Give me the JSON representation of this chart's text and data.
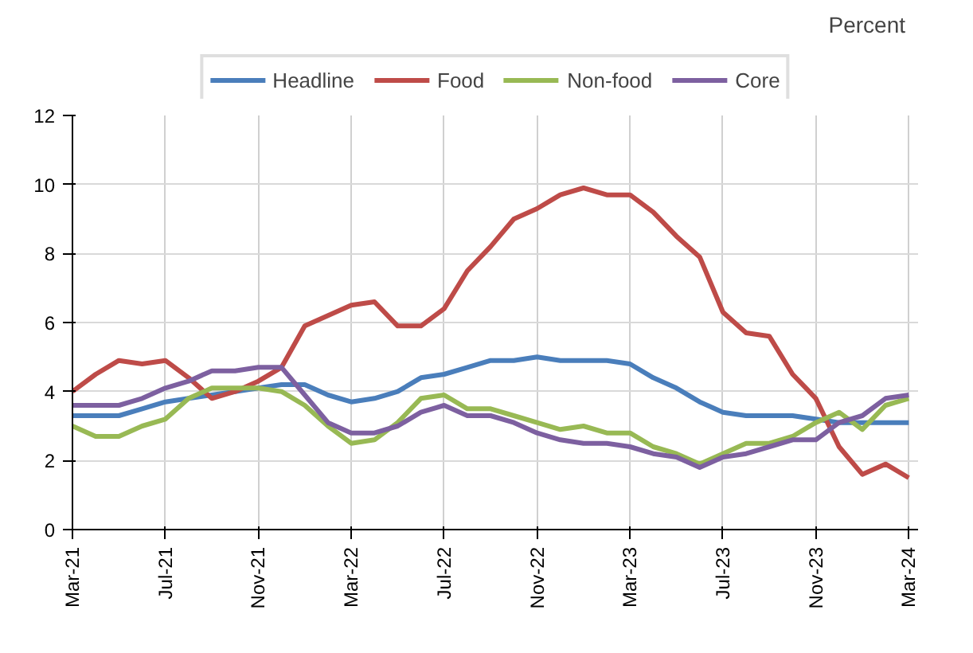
{
  "chart_data": {
    "type": "line",
    "categories": [
      "Mar-21",
      null,
      null,
      null,
      "Jul-21",
      null,
      null,
      null,
      "Nov-21",
      null,
      null,
      null,
      "Mar-22",
      null,
      null,
      null,
      "Jul-22",
      null,
      null,
      null,
      "Nov-22",
      null,
      null,
      null,
      "Mar-23",
      null,
      null,
      null,
      "Jul-23",
      null,
      null,
      null,
      "Nov-23",
      null,
      null,
      null,
      "Mar-24"
    ],
    "series": [
      {
        "name": "Headline",
        "color": "#4a7ebb",
        "values": [
          3.3,
          3.3,
          3.3,
          3.5,
          3.7,
          3.8,
          3.9,
          4.0,
          4.1,
          4.2,
          4.2,
          3.9,
          3.7,
          3.8,
          4.0,
          4.4,
          4.5,
          4.7,
          4.9,
          4.9,
          5.0,
          4.9,
          4.9,
          4.9,
          4.8,
          4.4,
          4.1,
          3.7,
          3.4,
          3.3,
          3.3,
          3.3,
          3.2,
          3.1,
          3.1,
          3.1,
          3.1
        ]
      },
      {
        "name": "Food",
        "color": "#be4b48",
        "values": [
          4.0,
          4.5,
          4.9,
          4.8,
          4.9,
          4.4,
          3.8,
          4.0,
          4.3,
          4.7,
          5.9,
          6.2,
          6.5,
          6.6,
          5.9,
          5.9,
          6.4,
          7.5,
          8.2,
          9.0,
          9.3,
          9.7,
          9.9,
          9.7,
          9.7,
          9.2,
          8.5,
          7.9,
          6.3,
          5.7,
          5.6,
          4.5,
          3.8,
          2.4,
          1.6,
          1.9,
          1.5
        ]
      },
      {
        "name": "Non-food",
        "color": "#98b954",
        "values": [
          3.0,
          2.7,
          2.7,
          3.0,
          3.2,
          3.8,
          4.1,
          4.1,
          4.1,
          4.0,
          3.6,
          3.0,
          2.5,
          2.6,
          3.1,
          3.8,
          3.9,
          3.5,
          3.5,
          3.3,
          3.1,
          2.9,
          3.0,
          2.8,
          2.8,
          2.4,
          2.2,
          1.9,
          2.2,
          2.5,
          2.5,
          2.7,
          3.1,
          3.4,
          2.9,
          3.6,
          3.8
        ]
      },
      {
        "name": "Core",
        "color": "#7d60a0",
        "values": [
          3.6,
          3.6,
          3.6,
          3.8,
          4.1,
          4.3,
          4.6,
          4.6,
          4.7,
          4.7,
          3.9,
          3.1,
          2.8,
          2.8,
          3.0,
          3.4,
          3.6,
          3.3,
          3.3,
          3.1,
          2.8,
          2.6,
          2.5,
          2.5,
          2.4,
          2.2,
          2.1,
          1.8,
          2.1,
          2.2,
          2.4,
          2.6,
          2.6,
          3.1,
          3.3,
          3.8,
          3.9
        ]
      }
    ],
    "ylim": [
      0,
      12
    ],
    "yticks": [
      0,
      2,
      4,
      6,
      8,
      10,
      12
    ],
    "grid": true,
    "legend": "top",
    "line_style": "solid",
    "marker": "none",
    "annotations": [
      "Percent"
    ]
  }
}
